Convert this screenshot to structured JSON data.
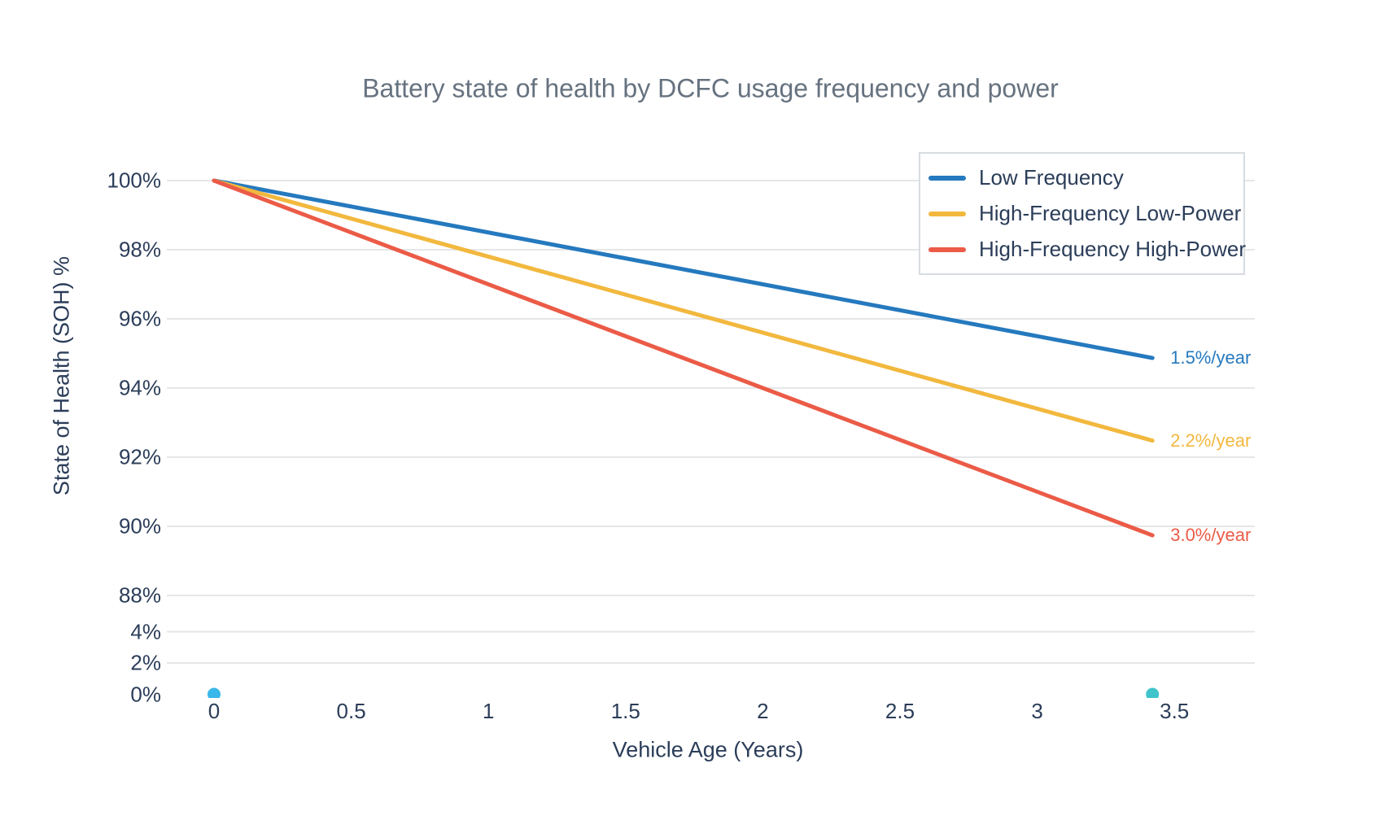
{
  "chart_data": {
    "type": "line",
    "title": "Battery state of health by DCFC usage frequency and power",
    "xlabel": "Vehicle Age (Years)",
    "ylabel": "State of Health (SOH) %",
    "x_ticks": [
      {
        "label": "0",
        "value": 0
      },
      {
        "label": "0.5",
        "value": 0.5
      },
      {
        "label": "1",
        "value": 1
      },
      {
        "label": "1.5",
        "value": 1.5
      },
      {
        "label": "2",
        "value": 2
      },
      {
        "label": "2.5",
        "value": 2.5
      },
      {
        "label": "3",
        "value": 3
      },
      {
        "label": "3.5",
        "value": 3.5
      }
    ],
    "y_ticks": [
      {
        "label": "0%",
        "value": 0,
        "gridline": false
      },
      {
        "label": "2%",
        "value": 2,
        "gridline": true
      },
      {
        "label": "4%",
        "value": 4,
        "gridline": true
      },
      {
        "label": "88%",
        "value": 88,
        "gridline": true
      },
      {
        "label": "90%",
        "value": 90,
        "gridline": true
      },
      {
        "label": "92%",
        "value": 92,
        "gridline": true
      },
      {
        "label": "94%",
        "value": 94,
        "gridline": true
      },
      {
        "label": "96%",
        "value": 96,
        "gridline": true
      },
      {
        "label": "98%",
        "value": 98,
        "gridline": true
      },
      {
        "label": "100%",
        "value": 100,
        "gridline": true
      }
    ],
    "x_range": [
      0,
      3.5
    ],
    "y_axis_break": {
      "lower_section_pct": [
        0,
        4
      ],
      "upper_section_pct": [
        88,
        100
      ]
    },
    "grid": true,
    "legend_position": "top-right",
    "series": [
      {
        "name": "Low Frequency",
        "color": "#2579BE",
        "rate_pct_per_year": 1.5,
        "end_label": "1.5%/year",
        "x": [
          0,
          3.42
        ],
        "y_pct": [
          100,
          94.87
        ]
      },
      {
        "name": "High-Frequency Low-Power",
        "color": "#F2B83E",
        "rate_pct_per_year": 2.2,
        "end_label": "2.2%/year",
        "x": [
          0,
          3.42
        ],
        "y_pct": [
          100,
          92.48
        ]
      },
      {
        "name": "High-Frequency High-Power",
        "color": "#EB5B47",
        "rate_pct_per_year": 3.0,
        "end_label": "3.0%/year",
        "x": [
          0,
          3.42
        ],
        "y_pct": [
          100,
          89.74
        ]
      }
    ],
    "markers": [
      {
        "x": 0,
        "y_pct": 0,
        "color": "#38B7E8"
      },
      {
        "x": 3.42,
        "y_pct": 0,
        "color": "#3FC4CB"
      }
    ]
  }
}
